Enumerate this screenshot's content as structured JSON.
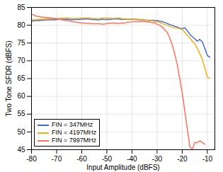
{
  "chart_data": {
    "type": "line",
    "xlabel": "Input Amplitude (dBFS)",
    "ylabel": "Two Tone SFDR (dBFS)",
    "xlim": [
      -80,
      -7
    ],
    "ylim": [
      45,
      85
    ],
    "xticks": [
      -80,
      -70,
      -60,
      -50,
      -40,
      -30,
      -20,
      -10
    ],
    "yticks": [
      45,
      50,
      55,
      60,
      65,
      70,
      75,
      80,
      85
    ],
    "grid": true,
    "legend": "lower left",
    "series": [
      {
        "name": "FIN = 347MHz",
        "x": [
          -80,
          -79,
          -78,
          -77,
          -76,
          -75,
          -74,
          -73,
          -72,
          -71,
          -70,
          -69,
          -68,
          -67,
          -66,
          -65,
          -64,
          -63,
          -62,
          -61,
          -60,
          -59,
          -58,
          -57,
          -56,
          -55,
          -54,
          -53,
          -52,
          -51,
          -50,
          -49,
          -48,
          -47,
          -46,
          -45,
          -44,
          -43,
          -42,
          -41,
          -40,
          -39,
          -38,
          -37,
          -36,
          -35,
          -34,
          -33,
          -32,
          -31,
          -30,
          -29,
          -28,
          -27,
          -26,
          -25,
          -24,
          -23,
          -22,
          -21,
          -20,
          -19,
          -18,
          -17,
          -16,
          -15,
          -14,
          -13,
          -12,
          -11,
          -10,
          -9
        ],
        "values": [
          81.2,
          81.2,
          81.3,
          81.3,
          81.4,
          81.4,
          81.5,
          81.5,
          81.5,
          81.5,
          81.6,
          81.6,
          81.7,
          81.6,
          81.7,
          81.6,
          81.5,
          81.6,
          81.6,
          81.6,
          81.7,
          81.7,
          81.8,
          81.7,
          81.6,
          81.6,
          81.5,
          81.5,
          81.7,
          81.6,
          81.6,
          81.6,
          81.7,
          81.7,
          81.8,
          81.7,
          81.6,
          81.7,
          81.6,
          81.6,
          81.7,
          81.6,
          81.6,
          81.5,
          81.5,
          81.4,
          81.4,
          81.3,
          81.4,
          81.3,
          81.3,
          81.1,
          81.0,
          80.8,
          80.5,
          80.2,
          80.0,
          79.7,
          79.5,
          79.2,
          79.0,
          79.3,
          78.5,
          77.5,
          76.8,
          76.2,
          75.5,
          76.0,
          75.3,
          73.5,
          71.5,
          71.0
        ]
      },
      {
        "name": "FIN = 4197MHz",
        "x": [
          -80,
          -79,
          -78,
          -77,
          -76,
          -75,
          -74,
          -73,
          -72,
          -71,
          -70,
          -69,
          -68,
          -67,
          -66,
          -65,
          -64,
          -63,
          -62,
          -61,
          -60,
          -59,
          -58,
          -57,
          -56,
          -55,
          -54,
          -53,
          -52,
          -51,
          -50,
          -49,
          -48,
          -47,
          -46,
          -45,
          -44,
          -43,
          -42,
          -41,
          -40,
          -39,
          -38,
          -37,
          -36,
          -35,
          -34,
          -33,
          -32,
          -31,
          -30,
          -29,
          -28,
          -27,
          -26,
          -25,
          -24,
          -23,
          -22,
          -21,
          -20,
          -19,
          -18,
          -17,
          -16,
          -15,
          -14,
          -13,
          -12,
          -11,
          -10,
          -9
        ],
        "values": [
          81.5,
          81.5,
          81.6,
          81.6,
          81.7,
          81.7,
          81.8,
          81.8,
          81.8,
          81.8,
          81.9,
          81.9,
          82.0,
          82.0,
          82.0,
          82.0,
          81.9,
          81.9,
          81.9,
          81.9,
          82.0,
          82.0,
          82.0,
          82.0,
          81.9,
          81.9,
          81.8,
          81.8,
          82.0,
          82.0,
          82.0,
          82.0,
          81.9,
          81.9,
          82.0,
          82.0,
          81.8,
          81.8,
          81.7,
          81.7,
          81.8,
          81.7,
          81.7,
          81.6,
          81.6,
          81.5,
          81.3,
          81.2,
          81.3,
          81.1,
          81.0,
          80.8,
          80.5,
          80.2,
          80.0,
          79.7,
          79.5,
          79.3,
          79.2,
          79.0,
          78.8,
          78.0,
          77.2,
          76.5,
          75.5,
          74.8,
          73.5,
          72.0,
          70.5,
          68.0,
          65.5,
          65.0
        ]
      },
      {
        "name": "FIN = 7997MHz",
        "x": [
          -80,
          -79,
          -78,
          -77,
          -76,
          -75,
          -74,
          -73,
          -72,
          -71,
          -70,
          -69,
          -68,
          -67,
          -66,
          -65,
          -64,
          -63,
          -62,
          -61,
          -60,
          -59,
          -58,
          -57,
          -56,
          -55,
          -54,
          -53,
          -52,
          -51,
          -50,
          -49,
          -48,
          -47,
          -46,
          -45,
          -44,
          -43,
          -42,
          -41,
          -40,
          -39,
          -38,
          -37,
          -36,
          -35,
          -34,
          -33,
          -32,
          -31,
          -30,
          -29,
          -28,
          -27,
          -26,
          -25,
          -24,
          -23,
          -22,
          -21,
          -20,
          -19,
          -18,
          -17,
          -16,
          -15,
          -14,
          -13,
          -12,
          -11
        ],
        "values": [
          83.0,
          82.9,
          82.5,
          82.4,
          82.3,
          82.2,
          82.2,
          82.1,
          82.0,
          81.9,
          81.8,
          81.7,
          81.5,
          81.4,
          81.3,
          81.2,
          81.0,
          80.9,
          80.8,
          80.7,
          80.6,
          80.6,
          80.5,
          80.5,
          80.4,
          80.4,
          80.4,
          80.4,
          80.3,
          80.3,
          80.5,
          80.5,
          80.6,
          80.6,
          80.5,
          80.5,
          80.6,
          80.6,
          80.8,
          80.8,
          81.0,
          81.0,
          81.0,
          81.0,
          81.0,
          81.0,
          80.9,
          80.9,
          80.7,
          80.7,
          80.3,
          80.0,
          79.5,
          78.8,
          78.0,
          76.5,
          74.5,
          72.0,
          69.0,
          65.0,
          61.0,
          56.0,
          51.0,
          46.0,
          45.0,
          47.0,
          47.0,
          47.5,
          47.0,
          46.5
        ]
      }
    ]
  }
}
